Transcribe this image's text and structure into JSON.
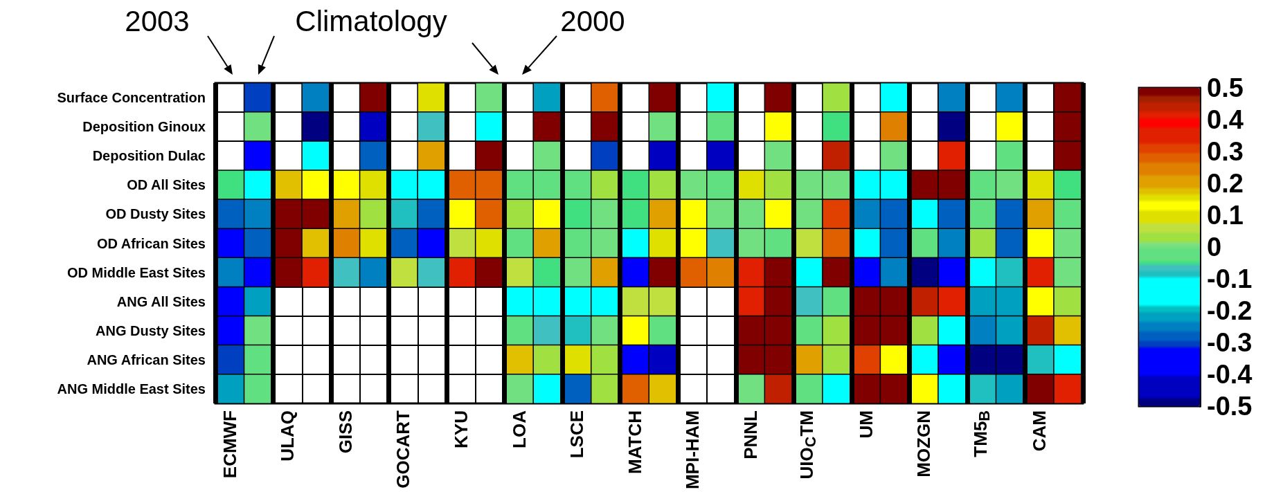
{
  "chart_data": {
    "type": "heatmap",
    "categories": [
      "ECMWF",
      null,
      "ULAQ",
      null,
      "GISS",
      null,
      "GOCART",
      null,
      "KYU",
      null,
      "LOA",
      null,
      "LSCE",
      null,
      "MATCH",
      null,
      "MPI-HAM",
      null,
      "PNNL",
      null,
      "UIO$_{C}$TM",
      null,
      "UM",
      null,
      "MOZGN",
      null,
      "TM5$_{B}$",
      null,
      "CAM",
      null
    ],
    "y_categories": [
      "Surface Concentration",
      "Deposition Ginoux",
      "Deposition Dulac",
      "OD All Sites",
      "OD Dusty Sites",
      "OD African Sites",
      "OD Middle East Sites",
      "ANG All Sites",
      "ANG Dusty Sites",
      "ANG African Sites",
      "ANG Middle East Sites"
    ],
    "cells": [
      [
        null,
        -0.3,
        null,
        -0.25,
        null,
        0.48,
        null,
        0.15,
        null,
        0,
        null,
        -0.22,
        null,
        0.27,
        null,
        0.48,
        null,
        -0.14,
        null,
        0.48,
        null,
        0.035,
        null,
        -0.14,
        null,
        -0.25,
        null,
        -0.25,
        null,
        0.48
      ],
      [
        null,
        0,
        null,
        -0.49,
        null,
        -0.44,
        null,
        -0.07,
        null,
        -0.14,
        null,
        0.48,
        null,
        0.48,
        null,
        0,
        null,
        -0.03,
        null,
        0.12,
        null,
        -0.05,
        null,
        0.24,
        null,
        -0.49,
        null,
        0.12,
        null,
        0.48
      ],
      [
        null,
        -0.36,
        null,
        -0.14,
        null,
        -0.28,
        null,
        0.21,
        null,
        0.48,
        null,
        0,
        null,
        -0.3,
        null,
        -0.44,
        null,
        -0.44,
        null,
        0,
        null,
        0.45,
        null,
        0,
        null,
        0.405,
        null,
        -0.03,
        null,
        0.48
      ],
      [
        -0.05,
        -0.14,
        0.18,
        0.12,
        0.12,
        0.15,
        -0.14,
        -0.14,
        0.27,
        0.27,
        -0.03,
        -0.03,
        -0.03,
        0.035,
        -0.05,
        0.035,
        0,
        -0.03,
        0.15,
        0.035,
        0,
        0,
        -0.14,
        -0.14,
        0.48,
        0.48,
        -0.03,
        0,
        0.15,
        -0.05
      ],
      [
        -0.28,
        -0.25,
        0.48,
        0.48,
        0.21,
        0.035,
        -0.09,
        -0.28,
        0.12,
        0.27,
        0.035,
        0.12,
        -0.05,
        0,
        -0.05,
        0.21,
        0.12,
        0,
        0,
        0.12,
        0,
        0.3,
        -0.25,
        -0.28,
        -0.14,
        -0.28,
        -0.03,
        -0.28,
        0.21,
        -0.03
      ],
      [
        -0.36,
        -0.28,
        0.48,
        0.18,
        0.24,
        0.15,
        -0.28,
        -0.36,
        0.07,
        0.15,
        -0.03,
        0.21,
        -0.03,
        0,
        -0.14,
        0.15,
        0.12,
        -0.07,
        0,
        -0.03,
        0.07,
        0.27,
        -0.14,
        -0.28,
        -0.03,
        -0.25,
        0.035,
        -0.28,
        0.12,
        0
      ],
      [
        -0.25,
        -0.36,
        0.48,
        0.37,
        -0.07,
        -0.25,
        0.07,
        -0.07,
        0.405,
        0.48,
        0.07,
        -0.05,
        0,
        0.21,
        -0.36,
        0.48,
        0.27,
        0.24,
        0.405,
        0.48,
        -0.14,
        0.48,
        -0.36,
        -0.25,
        -0.49,
        -0.36,
        -0.14,
        -0.09,
        0.37,
        0
      ],
      [
        -0.36,
        -0.22,
        null,
        null,
        null,
        null,
        null,
        null,
        null,
        null,
        -0.14,
        -0.14,
        -0.14,
        -0.14,
        0.07,
        0.07,
        null,
        null,
        0.37,
        0.48,
        -0.07,
        -0.03,
        0.48,
        0.48,
        0.43,
        0.37,
        -0.22,
        -0.22,
        0.12,
        0.035
      ],
      [
        -0.36,
        0,
        null,
        null,
        null,
        null,
        null,
        null,
        null,
        null,
        -0.03,
        -0.07,
        -0.09,
        0,
        0.12,
        -0.03,
        null,
        null,
        0.48,
        0.48,
        -0.03,
        0.035,
        0.48,
        0.48,
        0.035,
        -0.14,
        -0.25,
        -0.22,
        0.43,
        0.18
      ],
      [
        -0.3,
        -0.03,
        null,
        null,
        null,
        null,
        null,
        null,
        null,
        null,
        0.18,
        0.035,
        0.15,
        0.035,
        -0.36,
        -0.44,
        null,
        null,
        0.48,
        0.48,
        0.21,
        0.035,
        0.3,
        0.12,
        -0.14,
        -0.36,
        -0.49,
        -0.49,
        -0.09,
        -0.14
      ],
      [
        -0.22,
        -0.03,
        null,
        null,
        null,
        null,
        null,
        null,
        null,
        null,
        0,
        -0.14,
        -0.28,
        0.035,
        0.27,
        0.18,
        null,
        null,
        0,
        0.43,
        -0.03,
        -0.14,
        0.48,
        0.48,
        0.12,
        -0.14,
        -0.09,
        -0.22,
        0.48,
        0.37
      ]
    ],
    "clim": [
      -0.5,
      0.5
    ],
    "cticks": [
      -0.5,
      -0.4,
      -0.3,
      -0.2,
      -0.1,
      0,
      0.1,
      0.2,
      0.3,
      0.4,
      0.5
    ],
    "annotations": [
      "2003",
      "Climatology",
      "2000"
    ],
    "grid": true
  }
}
